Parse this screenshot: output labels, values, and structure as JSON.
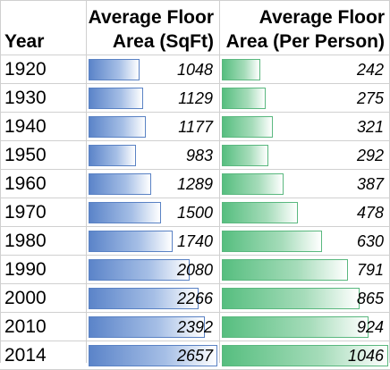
{
  "chart_data": {
    "type": "table",
    "headers": {
      "year": "Year",
      "area_line1": "Average Floor",
      "area_line2": "Area (SqFt)",
      "pp_line1": "Average Floor",
      "pp_line2": "Area (Per Person)"
    },
    "categories": [
      "1920",
      "1930",
      "1940",
      "1950",
      "1960",
      "1970",
      "1980",
      "1990",
      "2000",
      "2010",
      "2014"
    ],
    "series": [
      {
        "name": "Average Floor Area (SqFt)",
        "values": [
          1048,
          1129,
          1177,
          983,
          1289,
          1500,
          1740,
          2080,
          2266,
          2392,
          2657
        ],
        "color": "#5b84c9"
      },
      {
        "name": "Average Floor Area (Per Person)",
        "values": [
          242,
          275,
          321,
          292,
          387,
          478,
          630,
          791,
          865,
          924,
          1046
        ],
        "color": "#56be7f"
      }
    ]
  }
}
